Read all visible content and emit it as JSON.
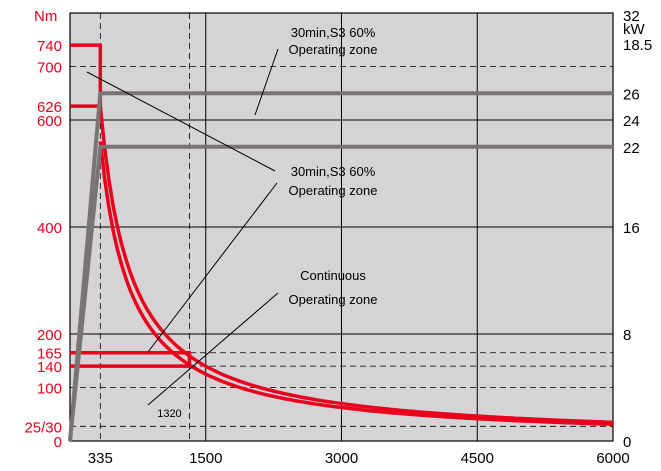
{
  "chart_data": {
    "type": "line",
    "xlabel": "",
    "ylabel": "",
    "y_left_unit": "Nm",
    "y_right_unit": "kW",
    "xlim": [
      0,
      6000
    ],
    "ylim_left": [
      0,
      800
    ],
    "ylim_right": [
      0,
      32
    ],
    "x_ticks": [
      {
        "v": 335,
        "label": "335"
      },
      {
        "v": 1500,
        "label": "1500"
      },
      {
        "v": 3000,
        "label": "3000"
      },
      {
        "v": 4500,
        "label": "4500"
      },
      {
        "v": 6000,
        "label": "6000"
      }
    ],
    "x_tick_note": {
      "v": 1320,
      "label": "1320"
    },
    "y_left_ticks": [
      {
        "v": 0,
        "label": "0"
      },
      {
        "v": 27.5,
        "label": "25/30"
      },
      {
        "v": 100,
        "label": "100"
      },
      {
        "v": 140,
        "label": "140"
      },
      {
        "v": 165,
        "label": "165"
      },
      {
        "v": 200,
        "label": "200"
      },
      {
        "v": 400,
        "label": "400"
      },
      {
        "v": 600,
        "label": "600"
      },
      {
        "v": 626,
        "label": "626"
      },
      {
        "v": 700,
        "label": "700"
      },
      {
        "v": 740,
        "label": "740"
      }
    ],
    "y_right_ticks": [
      {
        "v": 0,
        "label": "0"
      },
      {
        "v": 8,
        "label": "8"
      },
      {
        "v": 16,
        "label": "16"
      },
      {
        "v": 22,
        "label": "22"
      },
      {
        "v": 24,
        "label": "24"
      },
      {
        "v": 26,
        "label": "26"
      },
      {
        "v": 32,
        "label": "32"
      }
    ],
    "extra_right_labels": [
      "18.5"
    ],
    "grid": true,
    "series": [
      {
        "axis": "left",
        "color": "#e8001c",
        "points": [
          [
            0,
            740
          ],
          [
            335,
            740
          ],
          [
            335,
            626
          ],
          [
            0,
            626
          ]
        ],
        "curve": {
          "type": "hyperbola",
          "from": 335,
          "to": 6000,
          "torque_at_start": 626
        }
      },
      {
        "axis": "left",
        "color": "#e8001c",
        "points": [
          [
            0,
            165
          ],
          [
            1320,
            165
          ],
          [
            1320,
            140
          ],
          [
            0,
            140
          ]
        ],
        "curve": {
          "type": "hyperbola",
          "from": 335,
          "to": 6000,
          "torque_at_start": 560
        }
      },
      {
        "axis": "right",
        "color": "#7a7374",
        "points": [
          [
            0,
            0
          ],
          [
            335,
            26
          ],
          [
            1320,
            26
          ],
          [
            1500,
            26
          ],
          [
            6000,
            26
          ]
        ]
      },
      {
        "axis": "right",
        "color": "#7a7374",
        "points": [
          [
            0,
            0
          ],
          [
            335,
            22
          ],
          [
            1320,
            22
          ],
          [
            1500,
            22
          ],
          [
            6000,
            22
          ]
        ]
      }
    ],
    "annotations": [
      {
        "lines": [
          "30min,S3 60%",
          "Operating zone"
        ]
      },
      {
        "lines": [
          "30min,S3 60%",
          "Operating zone"
        ]
      },
      {
        "lines": [
          "Continuous",
          "Operating zone"
        ]
      }
    ],
    "colors": {
      "torque": "#e8001c",
      "power": "#7a7374",
      "background": "#d6d3d6"
    }
  }
}
